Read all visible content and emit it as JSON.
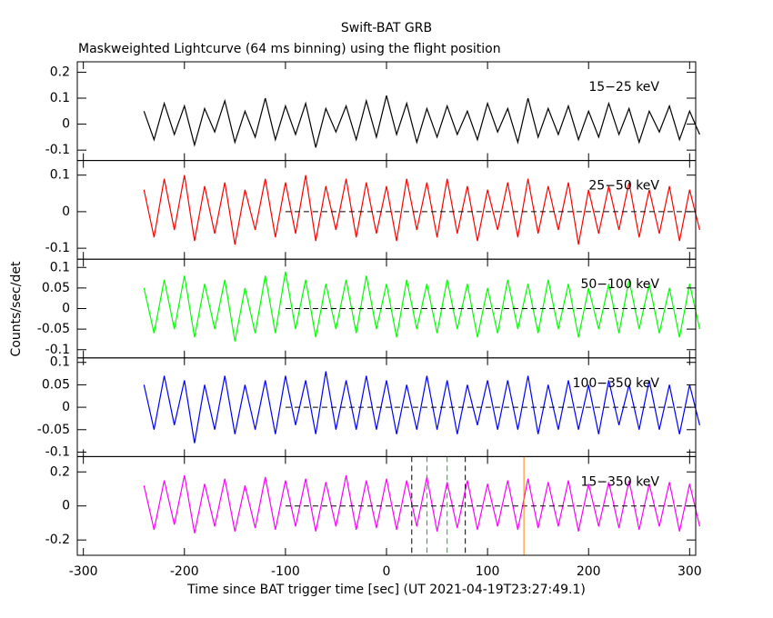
{
  "chart_data": {
    "type": "line",
    "title": "Swift-BAT GRB",
    "subtitle": "Maskweighted Lightcurve (64 ms binning) using the flight position",
    "xlabel": "Time since BAT trigger time [sec] (UT 2021-04-19T23:27:49.1)",
    "ylabel": "Counts/sec/det",
    "xlim": [
      -306,
      306
    ],
    "xticks": [
      -300,
      -200,
      -100,
      0,
      100,
      200,
      300
    ],
    "zero_line_from": -100,
    "x": [
      -240,
      -230,
      -220,
      -210,
      -200,
      -190,
      -180,
      -170,
      -160,
      -150,
      -140,
      -130,
      -120,
      -110,
      -100,
      -90,
      -80,
      -70,
      -60,
      -50,
      -40,
      -30,
      -20,
      -10,
      0,
      10,
      20,
      30,
      40,
      50,
      60,
      70,
      80,
      90,
      100,
      110,
      120,
      130,
      140,
      150,
      160,
      170,
      180,
      190,
      200,
      210,
      220,
      230,
      240,
      250,
      260,
      270,
      280,
      290,
      300,
      310
    ],
    "panels": [
      {
        "name": "15−25 keV",
        "color": "#000000",
        "ylim": [
          -0.14,
          0.24
        ],
        "yticks": [
          -0.1,
          0,
          0.1,
          0.2
        ],
        "values": [
          0.05,
          -0.06,
          0.08,
          -0.04,
          0.07,
          -0.08,
          0.06,
          -0.03,
          0.09,
          -0.07,
          0.05,
          -0.05,
          0.1,
          -0.06,
          0.07,
          -0.04,
          0.08,
          -0.09,
          0.06,
          -0.03,
          0.07,
          -0.06,
          0.09,
          -0.05,
          0.11,
          -0.04,
          0.08,
          -0.07,
          0.06,
          -0.05,
          0.07,
          -0.04,
          0.05,
          -0.06,
          0.08,
          -0.03,
          0.06,
          -0.07,
          0.1,
          -0.05,
          0.06,
          -0.04,
          0.07,
          -0.06,
          0.05,
          -0.05,
          0.08,
          -0.04,
          0.06,
          -0.07,
          0.05,
          -0.03,
          0.07,
          -0.06,
          0.05,
          -0.04
        ]
      },
      {
        "name": "25−50 keV",
        "color": "#ff0000",
        "ylim": [
          -0.13,
          0.14
        ],
        "yticks": [
          -0.1,
          0,
          0.1
        ],
        "values": [
          0.06,
          -0.07,
          0.09,
          -0.05,
          0.1,
          -0.08,
          0.07,
          -0.06,
          0.08,
          -0.09,
          0.06,
          -0.05,
          0.09,
          -0.07,
          0.08,
          -0.06,
          0.1,
          -0.08,
          0.07,
          -0.05,
          0.09,
          -0.07,
          0.08,
          -0.06,
          0.07,
          -0.08,
          0.09,
          -0.05,
          0.08,
          -0.07,
          0.09,
          -0.06,
          0.07,
          -0.08,
          0.06,
          -0.05,
          0.08,
          -0.07,
          0.09,
          -0.06,
          0.07,
          -0.05,
          0.08,
          -0.09,
          0.06,
          -0.06,
          0.07,
          -0.05,
          0.08,
          -0.07,
          0.06,
          -0.06,
          0.07,
          -0.08,
          0.06,
          -0.05
        ]
      },
      {
        "name": "50−100 keV",
        "color": "#00ff00",
        "ylim": [
          -0.12,
          0.12
        ],
        "yticks": [
          -0.1,
          -0.05,
          0,
          0.05,
          0.1
        ],
        "values": [
          0.05,
          -0.06,
          0.07,
          -0.05,
          0.08,
          -0.07,
          0.06,
          -0.05,
          0.07,
          -0.08,
          0.05,
          -0.06,
          0.08,
          -0.06,
          0.09,
          -0.05,
          0.07,
          -0.07,
          0.06,
          -0.05,
          0.07,
          -0.06,
          0.08,
          -0.05,
          0.06,
          -0.07,
          0.07,
          -0.05,
          0.06,
          -0.06,
          0.07,
          -0.05,
          0.06,
          -0.07,
          0.05,
          -0.06,
          0.07,
          -0.05,
          0.06,
          -0.06,
          0.07,
          -0.05,
          0.06,
          -0.07,
          0.05,
          -0.05,
          0.06,
          -0.06,
          0.07,
          -0.05,
          0.06,
          -0.06,
          0.05,
          -0.07,
          0.06,
          -0.05
        ]
      },
      {
        "name": "100−350 keV",
        "color": "#0000ff",
        "ylim": [
          -0.11,
          0.11
        ],
        "yticks": [
          -0.1,
          -0.05,
          0,
          0.05,
          0.1
        ],
        "values": [
          0.05,
          -0.05,
          0.07,
          -0.04,
          0.06,
          -0.08,
          0.05,
          -0.05,
          0.07,
          -0.06,
          0.05,
          -0.05,
          0.06,
          -0.06,
          0.07,
          -0.04,
          0.06,
          -0.06,
          0.08,
          -0.05,
          0.06,
          -0.05,
          0.07,
          -0.05,
          0.06,
          -0.06,
          0.05,
          -0.05,
          0.07,
          -0.05,
          0.06,
          -0.06,
          0.05,
          -0.04,
          0.06,
          -0.05,
          0.06,
          -0.05,
          0.07,
          -0.06,
          0.05,
          -0.05,
          0.06,
          -0.05,
          0.05,
          -0.06,
          0.06,
          -0.04,
          0.05,
          -0.05,
          0.06,
          -0.05,
          0.05,
          -0.06,
          0.05,
          -0.04
        ]
      },
      {
        "name": "15−350 keV",
        "color": "#ff00ff",
        "ylim": [
          -0.29,
          0.29
        ],
        "yticks": [
          -0.2,
          0,
          0.2
        ],
        "values": [
          0.12,
          -0.14,
          0.15,
          -0.11,
          0.18,
          -0.16,
          0.13,
          -0.12,
          0.16,
          -0.15,
          0.12,
          -0.13,
          0.17,
          -0.14,
          0.15,
          -0.12,
          0.16,
          -0.15,
          0.14,
          -0.12,
          0.18,
          -0.14,
          0.15,
          -0.13,
          0.16,
          -0.14,
          0.15,
          -0.12,
          0.17,
          -0.15,
          0.14,
          -0.13,
          0.15,
          -0.14,
          0.13,
          -0.12,
          0.15,
          -0.14,
          0.16,
          -0.13,
          0.14,
          -0.12,
          0.15,
          -0.15,
          0.13,
          -0.12,
          0.14,
          -0.13,
          0.15,
          -0.14,
          0.13,
          -0.12,
          0.14,
          -0.15,
          0.13,
          -0.12
        ],
        "markers": [
          {
            "x": 25,
            "color": "#000000"
          },
          {
            "x": 40,
            "color": "#00c000"
          },
          {
            "x": 60,
            "color": "#00c000"
          },
          {
            "x": 78,
            "color": "#000000"
          },
          {
            "x": 136,
            "color": "#ff8000"
          }
        ]
      }
    ]
  }
}
